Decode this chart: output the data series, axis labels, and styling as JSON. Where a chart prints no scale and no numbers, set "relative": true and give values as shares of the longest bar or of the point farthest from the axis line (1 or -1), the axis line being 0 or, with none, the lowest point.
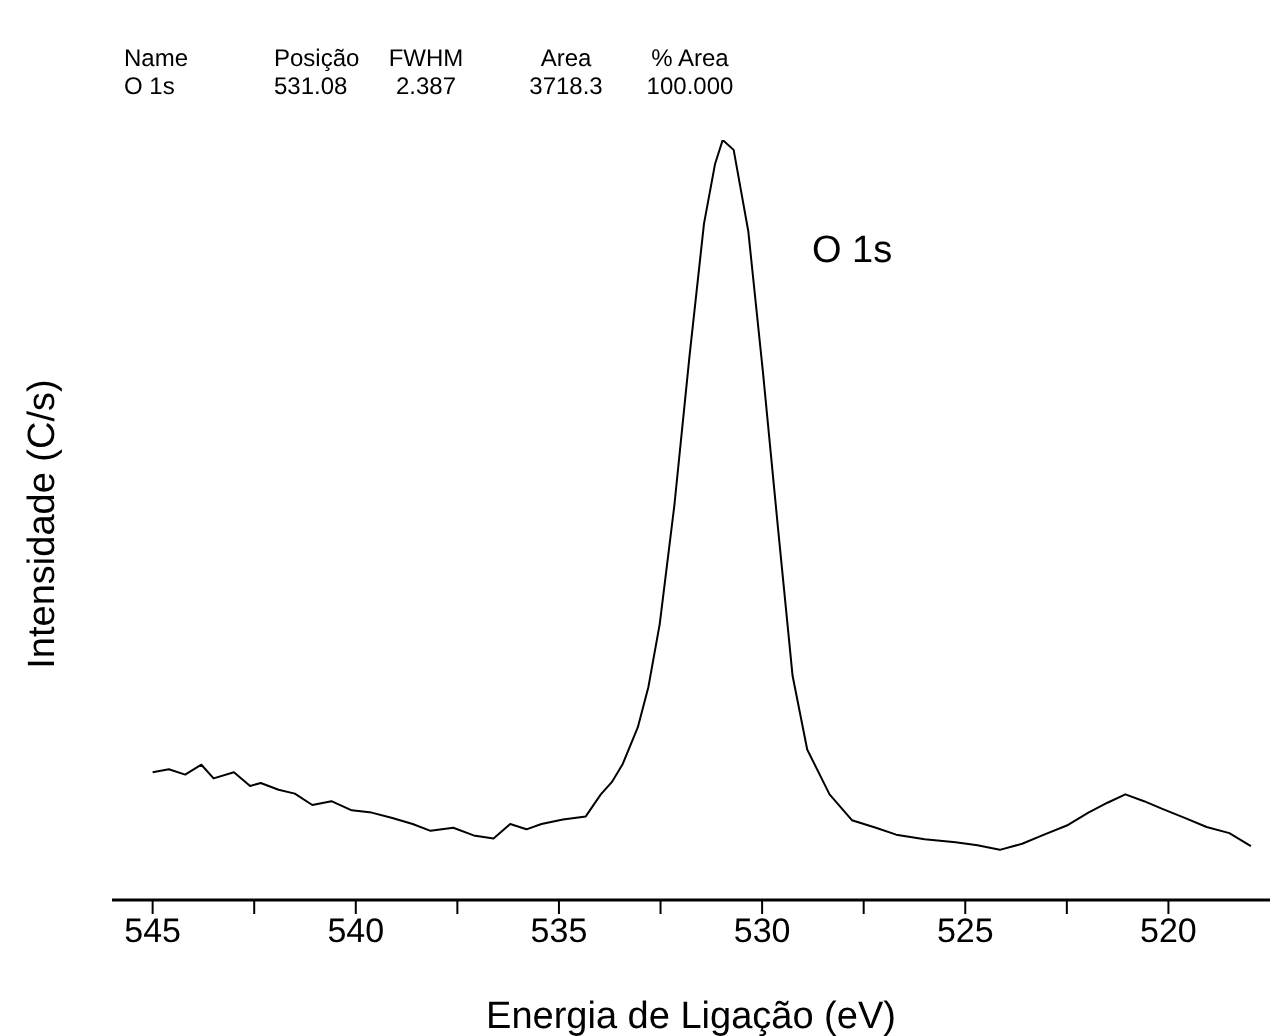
{
  "chart_data": {
    "type": "line",
    "relative": true,
    "xlabel": "Energia de Ligação (eV)",
    "ylabel": "Intensidade (C/s)",
    "xlim": [
      546,
      517.5
    ],
    "xticks": [
      545,
      {
        "value": 542.5,
        "label": null
      },
      540,
      {
        "value": 537.5,
        "label": null
      },
      535,
      {
        "value": 532.5,
        "label": null
      },
      530,
      {
        "value": 527.5,
        "label": null
      },
      525,
      {
        "value": 522.5,
        "label": null
      },
      520
    ],
    "annotations": [
      "Name",
      "Posição",
      "FWHM",
      "Area",
      "% Area",
      "O 1s",
      "531.08",
      "2.387",
      "3718.3",
      "100.000",
      "O 1s"
    ],
    "marker": "none",
    "series": [
      {
        "color": "#000000",
        "x": [
          545.0,
          544.6,
          544.2,
          543.8,
          543.5,
          543.0,
          542.6,
          542.34,
          541.9,
          541.5,
          541.07,
          540.6,
          540.1,
          539.61,
          539.1,
          538.6,
          538.16,
          537.6,
          537.1,
          536.61,
          536.2,
          535.8,
          535.43,
          534.9,
          534.34,
          533.97,
          533.7,
          533.43,
          533.06,
          532.8,
          532.52,
          532.16,
          531.79,
          531.43,
          531.16,
          530.97,
          530.7,
          530.34,
          529.98,
          529.61,
          529.25,
          528.89,
          528.34,
          527.79,
          527.2,
          526.7,
          526.0,
          525.24,
          524.7,
          524.15,
          523.6,
          523.06,
          522.5,
          521.97,
          521.5,
          521.06,
          520.6,
          520.15,
          519.6,
          519.06,
          518.5,
          517.97
        ],
        "values": [
          0.168,
          0.172,
          0.165,
          0.178,
          0.16,
          0.168,
          0.15,
          0.154,
          0.145,
          0.14,
          0.125,
          0.13,
          0.118,
          0.115,
          0.108,
          0.1,
          0.091,
          0.095,
          0.085,
          0.081,
          0.1,
          0.093,
          0.1,
          0.106,
          0.11,
          0.139,
          0.155,
          0.179,
          0.227,
          0.28,
          0.363,
          0.519,
          0.714,
          0.89,
          0.968,
          1.0,
          0.987,
          0.88,
          0.695,
          0.49,
          0.295,
          0.198,
          0.139,
          0.105,
          0.095,
          0.086,
          0.08,
          0.076,
          0.072,
          0.066,
          0.074,
          0.086,
          0.098,
          0.115,
          0.128,
          0.139,
          0.13,
          0.12,
          0.108,
          0.096,
          0.088,
          0.071
        ]
      }
    ]
  }
}
